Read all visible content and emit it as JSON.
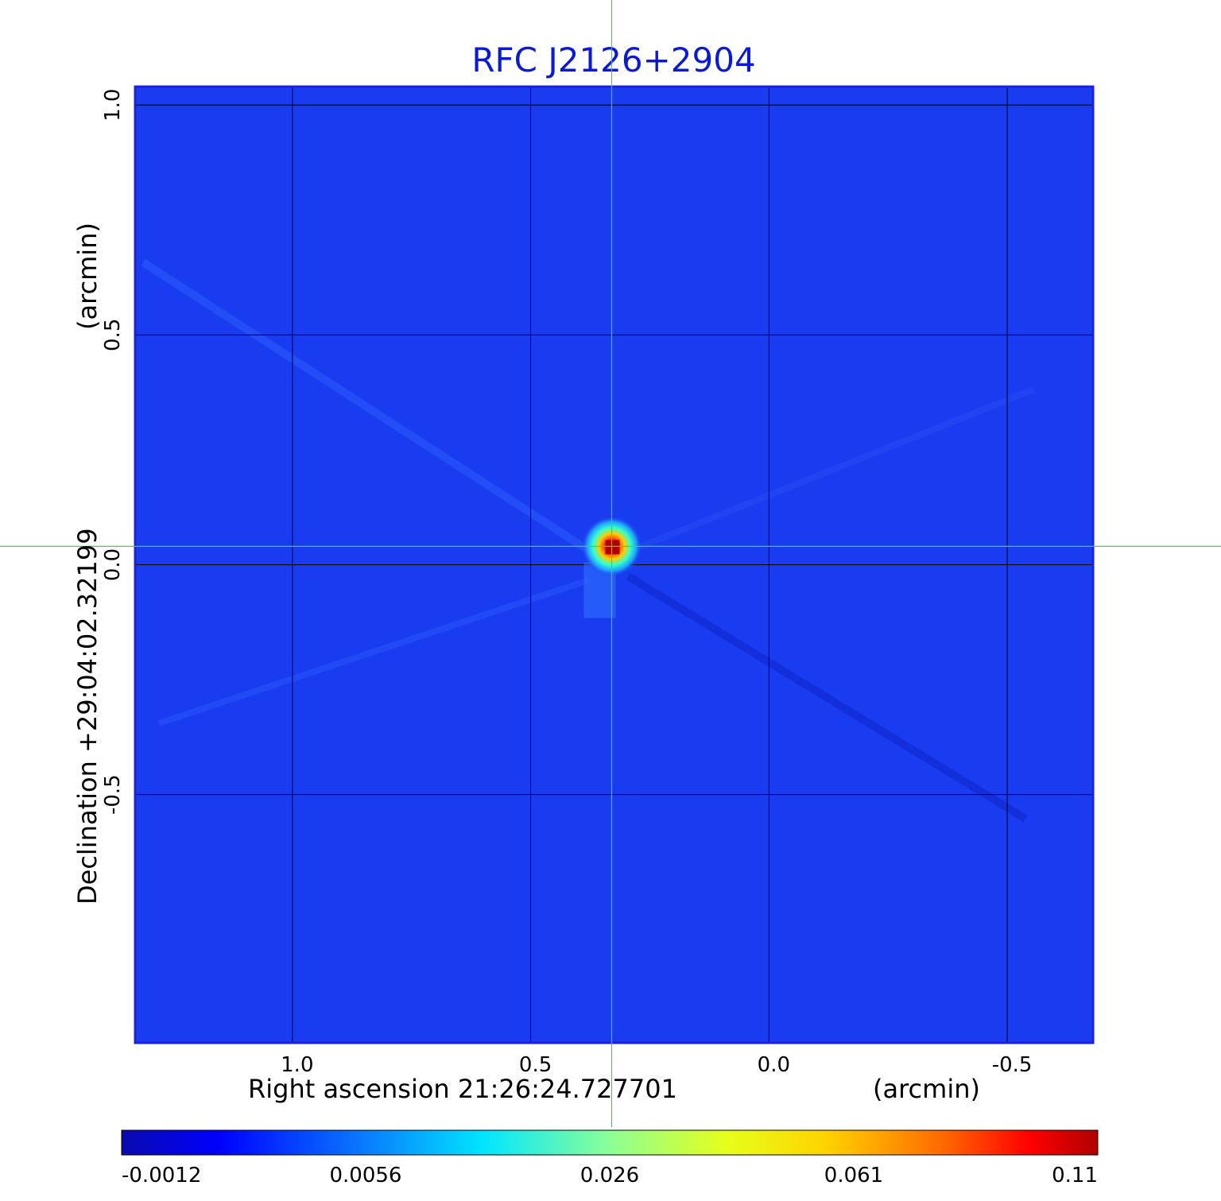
{
  "chart_data": {
    "type": "heatmap",
    "title": "RFC J2126+2904",
    "xlabel": "Right ascension  21:26:24.727701",
    "xlabel_unit": "(arcmin)",
    "ylabel": "Declination  +29:04:02.32199",
    "ylabel_unit": "(arcmin)",
    "xlim": [
      1.33,
      -0.68
    ],
    "ylim": [
      -1.04,
      1.04
    ],
    "x_ticks": [
      {
        "value": 1.0,
        "label": "1.0"
      },
      {
        "value": 0.5,
        "label": "0.5"
      },
      {
        "value": 0.0,
        "label": "0.0"
      },
      {
        "value": -0.5,
        "label": "-0.5"
      }
    ],
    "y_ticks": [
      {
        "value": 1.0,
        "label": "1.0"
      },
      {
        "value": 0.5,
        "label": "0.5"
      },
      {
        "value": 0.0,
        "label": "0.0"
      },
      {
        "value": -0.5,
        "label": "-0.5"
      }
    ],
    "grid": true,
    "source_peak": {
      "x": 0.33,
      "y": 0.04
    },
    "crosshair": {
      "x": 0.33,
      "y": 0.04
    },
    "colorbar": {
      "min": -0.0012,
      "max": 0.11,
      "ticks": [
        {
          "fraction": 0.0,
          "label": "-0.0012"
        },
        {
          "fraction": 0.25,
          "label": "0.0056"
        },
        {
          "fraction": 0.5,
          "label": "0.026"
        },
        {
          "fraction": 0.75,
          "label": "0.061"
        },
        {
          "fraction": 1.0,
          "label": "0.11"
        }
      ]
    },
    "colors": {
      "background": "#1a3cf0",
      "grid": "#000000",
      "crosshair": "#33dd33",
      "title": "#0a1ad6"
    }
  }
}
